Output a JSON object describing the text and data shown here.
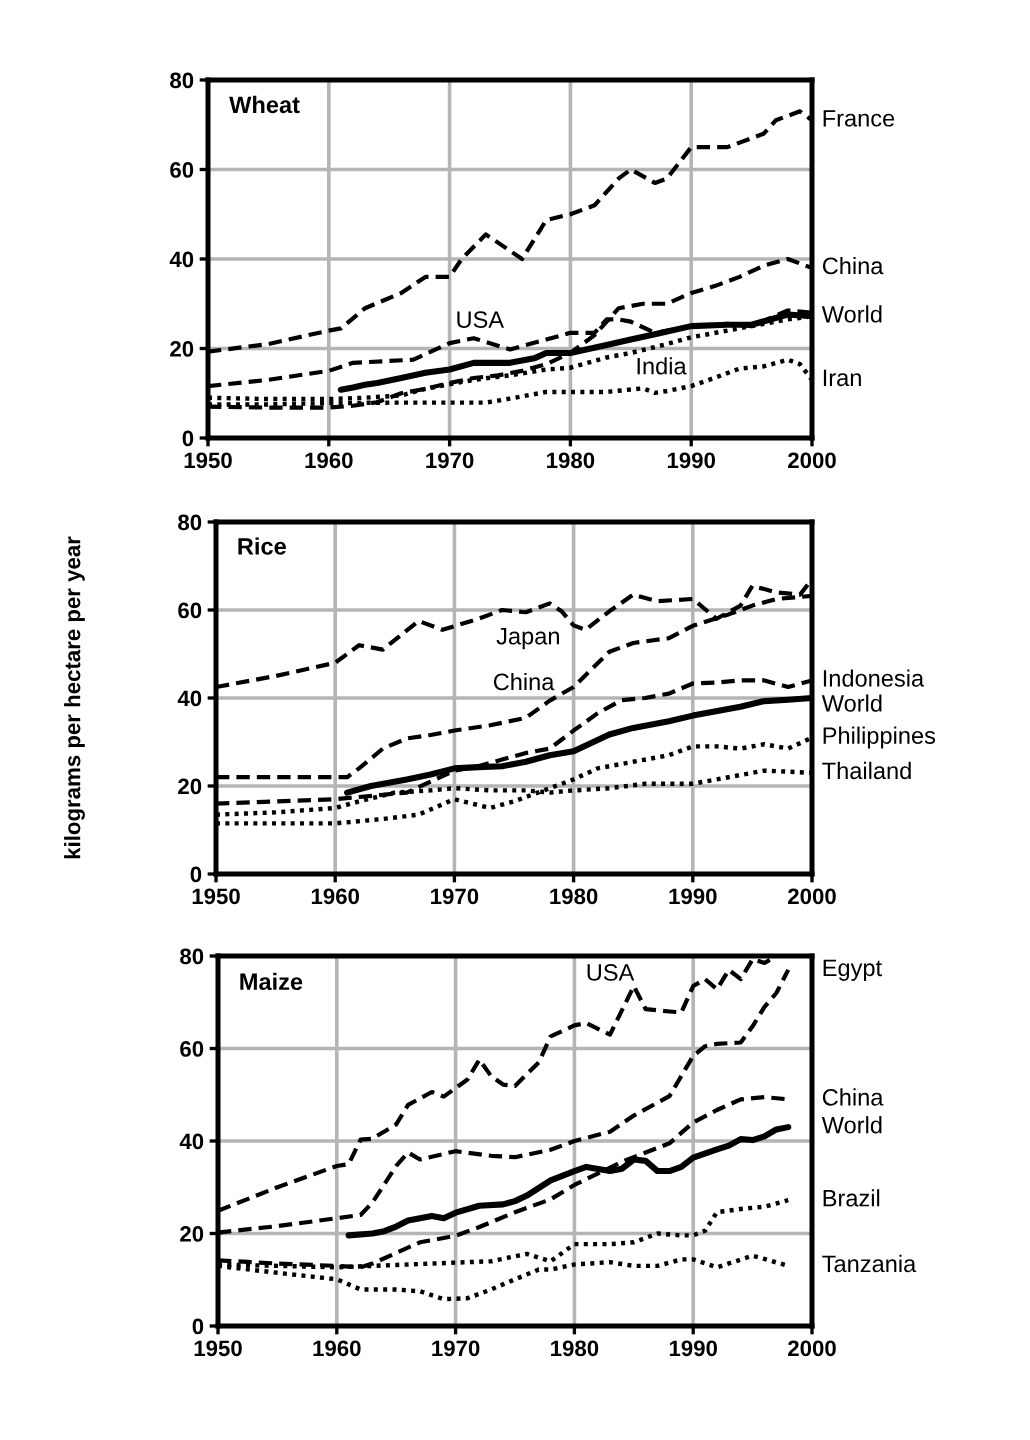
{
  "chart_data": [
    {
      "type": "line",
      "title": "Wheat",
      "xlim": [
        1950,
        2000
      ],
      "xticks": [
        1950,
        1960,
        1970,
        1980,
        1990,
        2000
      ],
      "ylim": [
        0,
        80
      ],
      "yticks": [
        0,
        20,
        40,
        60,
        80
      ],
      "grid": true,
      "series": [
        {
          "name": "France",
          "color": "#000000",
          "line_style": "dashed",
          "x": [
            1950,
            1955,
            1960,
            1961,
            1963,
            1966,
            1968,
            1970,
            1971,
            1973,
            1976,
            1978,
            1980,
            1982,
            1984,
            1985,
            1987,
            1988,
            1990,
            1993,
            1995,
            1996,
            1997,
            1999,
            2000
          ],
          "values": [
            19.3,
            21,
            24,
            24.5,
            29,
            32.4,
            36,
            36,
            40,
            45.5,
            40,
            48.7,
            50,
            52,
            58,
            60,
            57,
            58,
            65,
            65,
            67,
            68,
            71,
            73,
            71
          ]
        },
        {
          "name": "China",
          "color": "#000000",
          "line_style": "dashed",
          "x": [
            1950,
            1955,
            1960,
            1962,
            1964,
            1966,
            1968,
            1970,
            1972,
            1974,
            1976,
            1978,
            1980,
            1982,
            1984,
            1986,
            1988,
            1990,
            1992,
            1994,
            1996,
            1998,
            2000
          ],
          "values": [
            7,
            6.8,
            6.8,
            7.2,
            8,
            10,
            11,
            12.3,
            13.4,
            14,
            15,
            16.5,
            19,
            23,
            29,
            30,
            30,
            32.4,
            34,
            36,
            38.5,
            40,
            38
          ]
        },
        {
          "name": "World",
          "color": "#000000",
          "line_style": "solid",
          "x": [
            1961,
            1962,
            1963,
            1964,
            1966,
            1968,
            1970,
            1972,
            1974,
            1975,
            1977,
            1978,
            1980,
            1983,
            1985,
            1987,
            1990,
            1993,
            1995,
            1998,
            2000
          ],
          "values": [
            10.8,
            11.3,
            11.9,
            12.3,
            13.4,
            14.6,
            15.3,
            16.8,
            16.8,
            16.8,
            17.8,
            19,
            19,
            20.8,
            22,
            23.2,
            25,
            25.3,
            25.3,
            27.6,
            27.2
          ]
        },
        {
          "name": "USA",
          "color": "#000000",
          "line_style": "dashed",
          "x": [
            1950,
            1955,
            1960,
            1962,
            1967,
            1970,
            1972,
            1975,
            1978,
            1980,
            1982,
            1983,
            1984,
            1985,
            1987,
            1990,
            1993,
            1995,
            1998,
            2000
          ],
          "values": [
            11.6,
            13,
            15,
            16.8,
            17.5,
            21.2,
            22.3,
            19.8,
            22,
            23.5,
            23.5,
            26.5,
            26.5,
            26,
            23.5,
            25,
            25.5,
            25,
            28.5,
            28
          ]
        },
        {
          "name": "India",
          "color": "#000000",
          "line_style": "dotted",
          "x": [
            1950,
            1955,
            1960,
            1963,
            1966,
            1968,
            1970,
            1972,
            1975,
            1978,
            1980,
            1983,
            1985,
            1988,
            1990,
            1993,
            1995,
            1998,
            2000
          ],
          "values": [
            9,
            8.7,
            8.7,
            9,
            9.5,
            11,
            12,
            13,
            14,
            15.3,
            15.7,
            18,
            19,
            21,
            22.5,
            24,
            25,
            26.5,
            27.2
          ]
        },
        {
          "name": "Iran",
          "color": "#000000",
          "line_style": "dotted",
          "x": [
            1950,
            1955,
            1960,
            1965,
            1970,
            1973,
            1975,
            1978,
            1980,
            1983,
            1986,
            1987,
            1988,
            1990,
            1992,
            1994,
            1996,
            1998,
            1999,
            2000
          ],
          "values": [
            7.5,
            7.5,
            7.8,
            7.9,
            7.9,
            7.9,
            8.8,
            10.3,
            10.3,
            10.3,
            11.1,
            10.1,
            10.5,
            11.6,
            13.5,
            15.5,
            16,
            17.5,
            16.5,
            13
          ]
        }
      ]
    },
    {
      "type": "line",
      "title": "Rice",
      "ylabel": "kilograms per hectare per year",
      "xlim": [
        1950,
        2000
      ],
      "xticks": [
        1950,
        1960,
        1970,
        1980,
        1990,
        2000
      ],
      "ylim": [
        0,
        80
      ],
      "yticks": [
        0,
        20,
        40,
        60,
        80
      ],
      "grid": true,
      "series": [
        {
          "name": "Japan",
          "color": "#000000",
          "line_style": "dashed",
          "x": [
            1950,
            1955,
            1960,
            1962,
            1964,
            1967,
            1969,
            1972,
            1974,
            1976,
            1978,
            1979,
            1980,
            1981,
            1983,
            1985,
            1987,
            1990,
            1992,
            1994,
            1995,
            1997,
            1999,
            2000
          ],
          "values": [
            42.5,
            45,
            48,
            52,
            51,
            57.5,
            55.5,
            58,
            60,
            59.5,
            61.5,
            59.7,
            56.5,
            55.5,
            59.7,
            63.5,
            62,
            62.5,
            58,
            61,
            65.5,
            64,
            63.5,
            67
          ]
        },
        {
          "name": "China",
          "color": "#000000",
          "line_style": "dashed",
          "x": [
            1950,
            1955,
            1960,
            1961,
            1962,
            1964,
            1966,
            1968,
            1970,
            1973,
            1976,
            1978,
            1980,
            1983,
            1985,
            1988,
            1990,
            1993,
            1995,
            1997,
            2000
          ],
          "values": [
            22,
            22,
            22,
            22,
            24,
            28.5,
            30.8,
            31.6,
            32.6,
            33.8,
            35.5,
            39.4,
            42.5,
            50.5,
            52.5,
            53.6,
            56.4,
            59,
            61,
            62.5,
            63.2
          ]
        },
        {
          "name": "Indonesia",
          "color": "#000000",
          "line_style": "dashed",
          "x": [
            1950,
            1955,
            1960,
            1962,
            1964,
            1966,
            1968,
            1970,
            1972,
            1974,
            1976,
            1978,
            1980,
            1982,
            1984,
            1986,
            1988,
            1990,
            1992,
            1994,
            1996,
            1998,
            2000
          ],
          "values": [
            16,
            16.5,
            17,
            17.5,
            18,
            18.5,
            21,
            23.5,
            24.5,
            26,
            27.5,
            28.5,
            32.6,
            36.5,
            39.5,
            40,
            41,
            43.3,
            43.5,
            44,
            44,
            42.5,
            44
          ]
        },
        {
          "name": "World",
          "color": "#000000",
          "line_style": "solid",
          "x": [
            1961,
            1963,
            1966,
            1968,
            1970,
            1972,
            1974,
            1976,
            1978,
            1980,
            1983,
            1985,
            1988,
            1990,
            1994,
            1996,
            1998,
            2000
          ],
          "values": [
            18.5,
            20,
            21.5,
            22.6,
            24,
            24.3,
            24.5,
            25.5,
            27,
            27.9,
            31.7,
            33.2,
            34.7,
            36,
            38,
            39.3,
            39.6,
            40
          ]
        },
        {
          "name": "Philippines",
          "color": "#000000",
          "line_style": "dotted",
          "x": [
            1950,
            1955,
            1960,
            1964,
            1967,
            1970,
            1973,
            1975,
            1977,
            1980,
            1982,
            1985,
            1988,
            1990,
            1992,
            1994,
            1996,
            1998,
            2000
          ],
          "values": [
            11.5,
            11.5,
            11.5,
            12.5,
            13.5,
            17,
            15,
            16.5,
            18.5,
            21.5,
            24,
            25.5,
            27,
            29,
            29,
            28.5,
            29.5,
            28.5,
            31
          ]
        },
        {
          "name": "Thailand",
          "color": "#000000",
          "line_style": "dotted",
          "x": [
            1950,
            1955,
            1960,
            1962,
            1965,
            1968,
            1970,
            1973,
            1976,
            1978,
            1980,
            1983,
            1986,
            1990,
            1993,
            1996,
            2000
          ],
          "values": [
            13.5,
            14,
            15,
            16.5,
            18.5,
            19,
            19.5,
            19,
            19,
            18.5,
            19,
            19.5,
            20.5,
            20.5,
            22,
            23.5,
            23
          ]
        }
      ]
    },
    {
      "type": "line",
      "title": "Maize",
      "xlim": [
        1950,
        2000
      ],
      "xticks": [
        1950,
        1960,
        1970,
        1980,
        1990,
        2000
      ],
      "ylim": [
        0,
        80
      ],
      "yticks": [
        0,
        20,
        40,
        60,
        80
      ],
      "grid": true,
      "series": [
        {
          "name": "USA",
          "color": "#000000",
          "line_style": "dashed",
          "x": [
            1950,
            1955,
            1960,
            1961,
            1962,
            1963,
            1965,
            1966,
            1968,
            1969,
            1971,
            1972,
            1973,
            1974,
            1975,
            1977,
            1978,
            1980,
            1981,
            1983,
            1985,
            1986,
            1988,
            1989,
            1990,
            1991,
            1992,
            1993,
            1994,
            1995,
            1996,
            1997
          ],
          "values": [
            24.9,
            30,
            34.6,
            35,
            40.3,
            40.5,
            43.6,
            47.8,
            50.6,
            49.6,
            53.3,
            57.6,
            54,
            52.2,
            51.9,
            57,
            62.6,
            65,
            65.5,
            63,
            73.5,
            68.5,
            68,
            67.8,
            73.5,
            75,
            72.8,
            77,
            75,
            79.3,
            78.5,
            80
          ]
        },
        {
          "name": "Egypt",
          "color": "#000000",
          "line_style": "dashed",
          "x": [
            1950,
            1955,
            1960,
            1962,
            1963,
            1965,
            1966,
            1967,
            1970,
            1973,
            1975,
            1978,
            1980,
            1983,
            1985,
            1988,
            1990,
            1991,
            1992,
            1994,
            1995,
            1996,
            1997,
            1998
          ],
          "values": [
            20.2,
            21.6,
            23.3,
            24,
            26.7,
            34.6,
            37.5,
            36,
            37.8,
            36.8,
            36.5,
            38.1,
            40,
            42,
            45.5,
            49.7,
            58.4,
            60.5,
            61,
            61.3,
            64.8,
            69,
            72,
            77
          ]
        },
        {
          "name": "China",
          "color": "#000000",
          "line_style": "dashed",
          "x": [
            1950,
            1955,
            1960,
            1962,
            1963,
            1965,
            1967,
            1970,
            1972,
            1975,
            1978,
            1980,
            1982,
            1984,
            1986,
            1988,
            1990,
            1992,
            1994,
            1996,
            1998
          ],
          "values": [
            14.2,
            13.5,
            13,
            12.7,
            13.5,
            15.8,
            18.1,
            19.5,
            21.4,
            24.6,
            27.4,
            30.5,
            33,
            35.5,
            37.5,
            39.5,
            44,
            46.7,
            49,
            49.5,
            49
          ]
        },
        {
          "name": "World",
          "color": "#000000",
          "line_style": "solid",
          "x": [
            1961,
            1963,
            1964,
            1965,
            1966,
            1968,
            1969,
            1970,
            1972,
            1974,
            1975,
            1976,
            1978,
            1980,
            1981,
            1983,
            1984,
            1985,
            1986,
            1987,
            1988,
            1989,
            1990,
            1992,
            1993,
            1994,
            1995,
            1996,
            1997,
            1998
          ],
          "values": [
            19.6,
            20,
            20.5,
            21.5,
            22.8,
            23.8,
            23.3,
            24.5,
            26,
            26.3,
            27,
            28.2,
            31.5,
            33.5,
            34.4,
            33.5,
            34,
            36,
            35.7,
            33.5,
            33.5,
            34.4,
            36.4,
            38.2,
            39,
            40.4,
            40.2,
            41,
            42.5,
            43
          ]
        },
        {
          "name": "Brazil",
          "color": "#000000",
          "line_style": "dotted",
          "x": [
            1950,
            1955,
            1960,
            1963,
            1965,
            1970,
            1973,
            1976,
            1978,
            1980,
            1983,
            1985,
            1987,
            1989,
            1990,
            1991,
            1992,
            1994,
            1996,
            1998
          ],
          "values": [
            13.3,
            13,
            12.7,
            13,
            13.2,
            13.7,
            14,
            15.6,
            14,
            17.7,
            17.7,
            18.1,
            20,
            19.6,
            19.6,
            20.6,
            24.6,
            25.3,
            25.8,
            27.2
          ]
        },
        {
          "name": "Tanzania",
          "color": "#000000",
          "line_style": "dotted",
          "x": [
            1950,
            1955,
            1960,
            1962,
            1965,
            1967,
            1969,
            1971,
            1973,
            1975,
            1977,
            1978,
            1980,
            1983,
            1985,
            1987,
            1989,
            1990,
            1992,
            1995,
            1996,
            1998
          ],
          "values": [
            13,
            11.5,
            10.1,
            7.9,
            7.9,
            7.5,
            5.8,
            6,
            7.9,
            10.1,
            12.2,
            12.2,
            13.3,
            13.8,
            13,
            13,
            14.4,
            14.4,
            12.7,
            15.2,
            14.5,
            13
          ]
        }
      ]
    }
  ]
}
